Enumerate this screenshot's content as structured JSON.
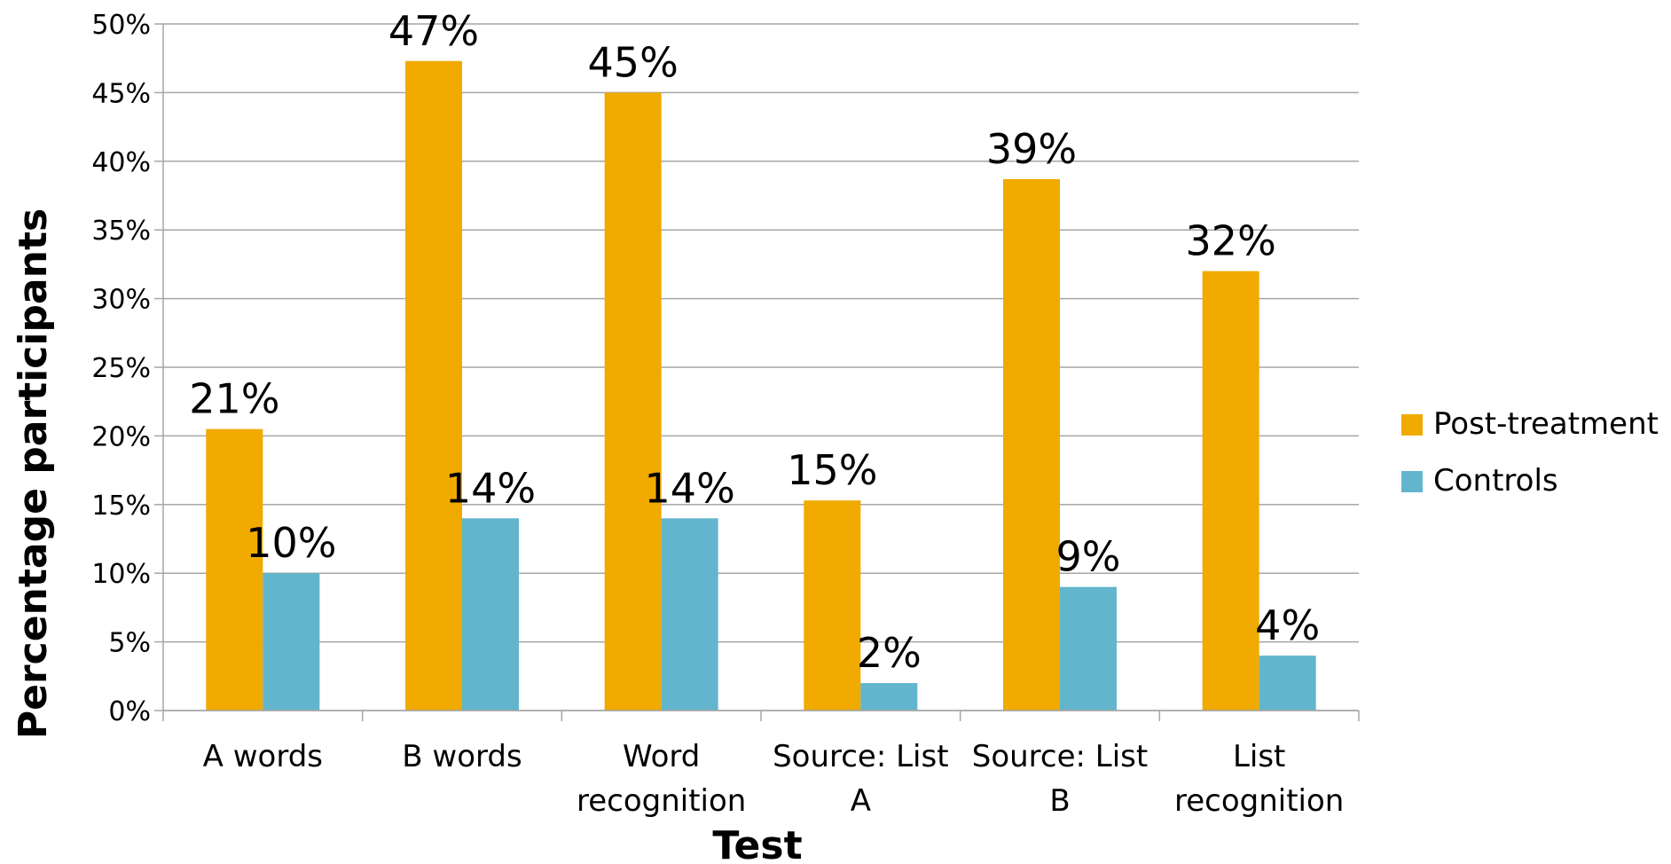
{
  "chart_data": {
    "type": "bar",
    "title": "",
    "xlabel": "Test",
    "ylabel": "Percentage participants",
    "ylim": [
      0,
      50
    ],
    "ytick_step": 5,
    "ytick_format": "percent",
    "grid": true,
    "legend_position": "right",
    "categories": [
      [
        "A words"
      ],
      [
        "B words"
      ],
      [
        "Word",
        "recognition"
      ],
      [
        "Source: List",
        "A"
      ],
      [
        "Source: List",
        "B"
      ],
      [
        "List",
        "recognition"
      ]
    ],
    "series": [
      {
        "name": "Post-treatment",
        "color": "#F0AA00",
        "values": [
          20.5,
          47.3,
          45,
          15.3,
          38.7,
          32
        ],
        "labels": [
          "21%",
          "47%",
          "45%",
          "15%",
          "39%",
          "32%"
        ]
      },
      {
        "name": "Controls",
        "color": "#62B5CC",
        "values": [
          10,
          14,
          14,
          2,
          9,
          4
        ],
        "labels": [
          "10%",
          "14%",
          "14%",
          "2%",
          "9%",
          "4%"
        ]
      }
    ]
  }
}
